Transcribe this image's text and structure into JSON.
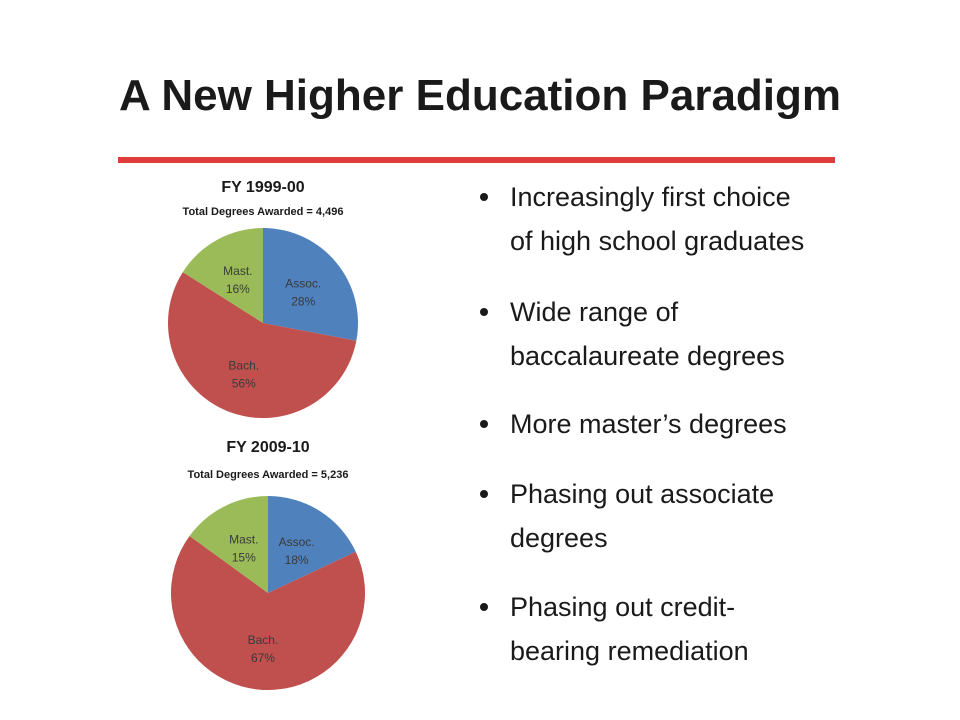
{
  "title": "A New Higher Education Paradigm",
  "chart_data": [
    {
      "type": "pie",
      "title": "FY 1999-00",
      "subtitle": "Total Degrees Awarded = 4,496",
      "categories": [
        "Assoc.",
        "Bach.",
        "Mast."
      ],
      "values": [
        28,
        56,
        16
      ],
      "value_labels": [
        "28%",
        "56%",
        "16%"
      ],
      "colors": [
        "#4f81bd",
        "#c0504d",
        "#9bbb59"
      ]
    },
    {
      "type": "pie",
      "title": "FY 2009-10",
      "subtitle": "Total Degrees Awarded = 5,236",
      "categories": [
        "Assoc.",
        "Bach.",
        "Mast."
      ],
      "values": [
        18,
        67,
        15
      ],
      "value_labels": [
        "18%",
        "67%",
        "15%"
      ],
      "colors": [
        "#4f81bd",
        "#c0504d",
        "#9bbb59"
      ]
    }
  ],
  "bullets": [
    [
      "Increasingly first choice",
      "of high school graduates"
    ],
    [
      "Wide range of",
      "baccalaureate degrees"
    ],
    [
      "More master’s degrees"
    ],
    [
      "Phasing out associate",
      "degrees"
    ],
    [
      "Phasing out credit-",
      "bearing remediation"
    ]
  ]
}
